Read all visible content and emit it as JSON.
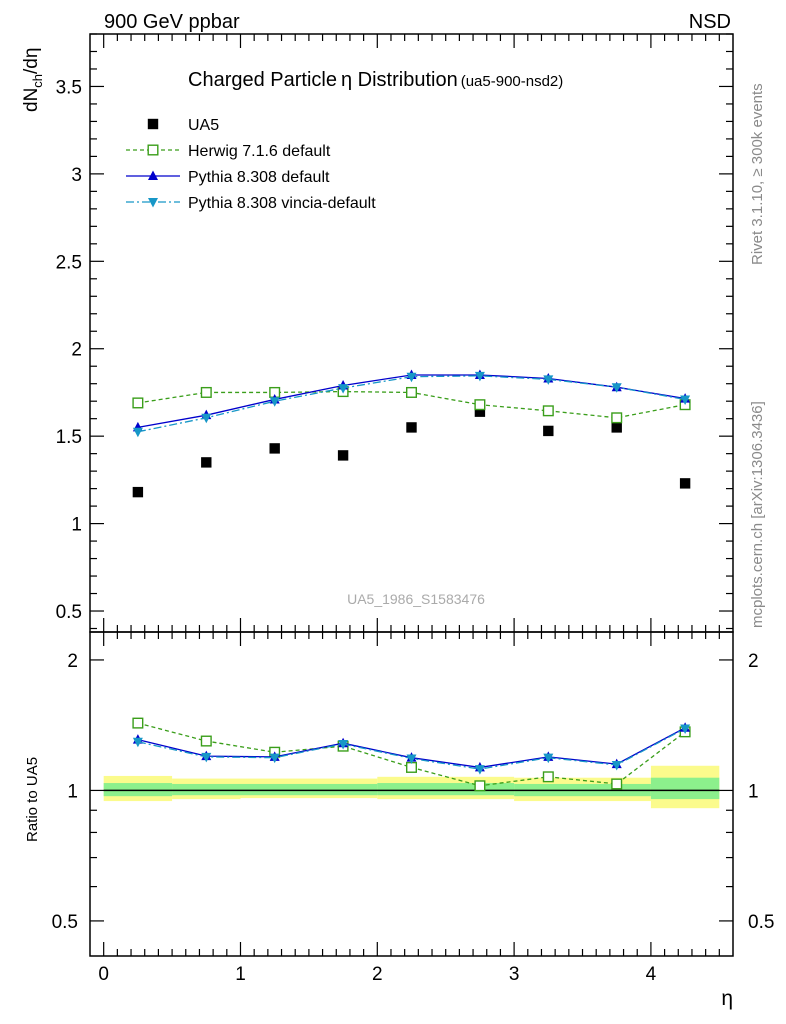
{
  "header": {
    "left": "900 GeV ppbar",
    "right": "NSD"
  },
  "side_labels": {
    "rivet": "Rivet 3.1.10, ≥ 300k events",
    "mcplots": "mcplots.cern.ch [arXiv:1306.3436]"
  },
  "chart_data": {
    "type": "scatter",
    "title": "Charged Particle",
    "title_symbol": "η",
    "title_rest": " Distribution",
    "title_small": "(ua5-900-nsd2)",
    "watermark": "UA5_1986_S1583476",
    "xlabel": "η",
    "ylabel_main": {
      "a": "dN",
      "sub": "ch",
      "b": "/dη"
    },
    "ylabel_ratio": "Ratio to UA5",
    "xlim": [
      -0.1,
      4.6
    ],
    "ylim_main": [
      0.38,
      3.8
    ],
    "ylim_ratio": [
      0.415,
      2.32
    ],
    "x_ticks": [
      0,
      1,
      2,
      3,
      4
    ],
    "x_tick_labels": [
      "0",
      "1",
      "2",
      "3",
      "4"
    ],
    "y_ticks_main": [
      0.5,
      1,
      1.5,
      2,
      2.5,
      3,
      3.5
    ],
    "y_tick_labels_main": [
      "0.5",
      "1",
      "1.5",
      "2",
      "2.5",
      "3",
      "3.5"
    ],
    "y_ticks_ratio": [
      0.5,
      1,
      2
    ],
    "y_tick_labels_ratio": [
      "0.5",
      "1",
      "2"
    ],
    "x": [
      0.25,
      0.75,
      1.25,
      1.75,
      2.25,
      2.75,
      3.25,
      3.75,
      4.25
    ],
    "series": [
      {
        "name": "UA5",
        "values": [
          1.18,
          1.35,
          1.43,
          1.39,
          1.55,
          1.64,
          1.53,
          1.55,
          1.23
        ],
        "ratio": [
          1,
          1,
          1,
          1,
          1,
          1,
          1,
          1,
          1
        ],
        "color": "#000000",
        "marker": "square"
      },
      {
        "name": "Herwig 7.1.6 default",
        "values": [
          1.69,
          1.75,
          1.75,
          1.755,
          1.75,
          1.68,
          1.645,
          1.605,
          1.68
        ],
        "ratio": [
          1.43,
          1.3,
          1.225,
          1.265,
          1.13,
          1.025,
          1.075,
          1.035,
          1.365
        ],
        "color": "#3a9e1a",
        "marker": "open-square",
        "dash": "4,3"
      },
      {
        "name": "Pythia 8.308 default",
        "values": [
          1.55,
          1.62,
          1.71,
          1.79,
          1.85,
          1.85,
          1.83,
          1.78,
          1.715
        ],
        "ratio": [
          1.31,
          1.2,
          1.195,
          1.285,
          1.19,
          1.13,
          1.195,
          1.15,
          1.395
        ],
        "color": "#0000cc",
        "marker": "triangle-up"
      },
      {
        "name": "Pythia 8.308 vincia-default",
        "values": [
          1.525,
          1.605,
          1.7,
          1.775,
          1.84,
          1.845,
          1.825,
          1.78,
          1.71
        ],
        "ratio": [
          1.295,
          1.195,
          1.19,
          1.28,
          1.185,
          1.12,
          1.19,
          1.145,
          1.39
        ],
        "color": "#1797c7",
        "marker": "triangle-down",
        "dash": "8,3,2,3"
      }
    ],
    "ratio_bands": [
      {
        "x0": 0.0,
        "x1": 0.5,
        "outer": [
          0.945,
          1.08
        ],
        "inner": [
          0.97,
          1.04
        ]
      },
      {
        "x0": 0.5,
        "x1": 1.0,
        "outer": [
          0.955,
          1.065
        ],
        "inner": [
          0.975,
          1.035
        ]
      },
      {
        "x0": 1.0,
        "x1": 2.0,
        "outer": [
          0.96,
          1.065
        ],
        "inner": [
          0.975,
          1.035
        ]
      },
      {
        "x0": 2.0,
        "x1": 3.0,
        "outer": [
          0.955,
          1.075
        ],
        "inner": [
          0.975,
          1.04
        ]
      },
      {
        "x0": 3.0,
        "x1": 4.0,
        "outer": [
          0.945,
          1.07
        ],
        "inner": [
          0.97,
          1.035
        ]
      },
      {
        "x0": 4.0,
        "x1": 4.5,
        "outer": [
          0.91,
          1.14
        ],
        "inner": [
          0.955,
          1.07
        ]
      }
    ],
    "band_colors": {
      "outer": "#fbfb8c",
      "inner": "#8cf08c"
    }
  }
}
